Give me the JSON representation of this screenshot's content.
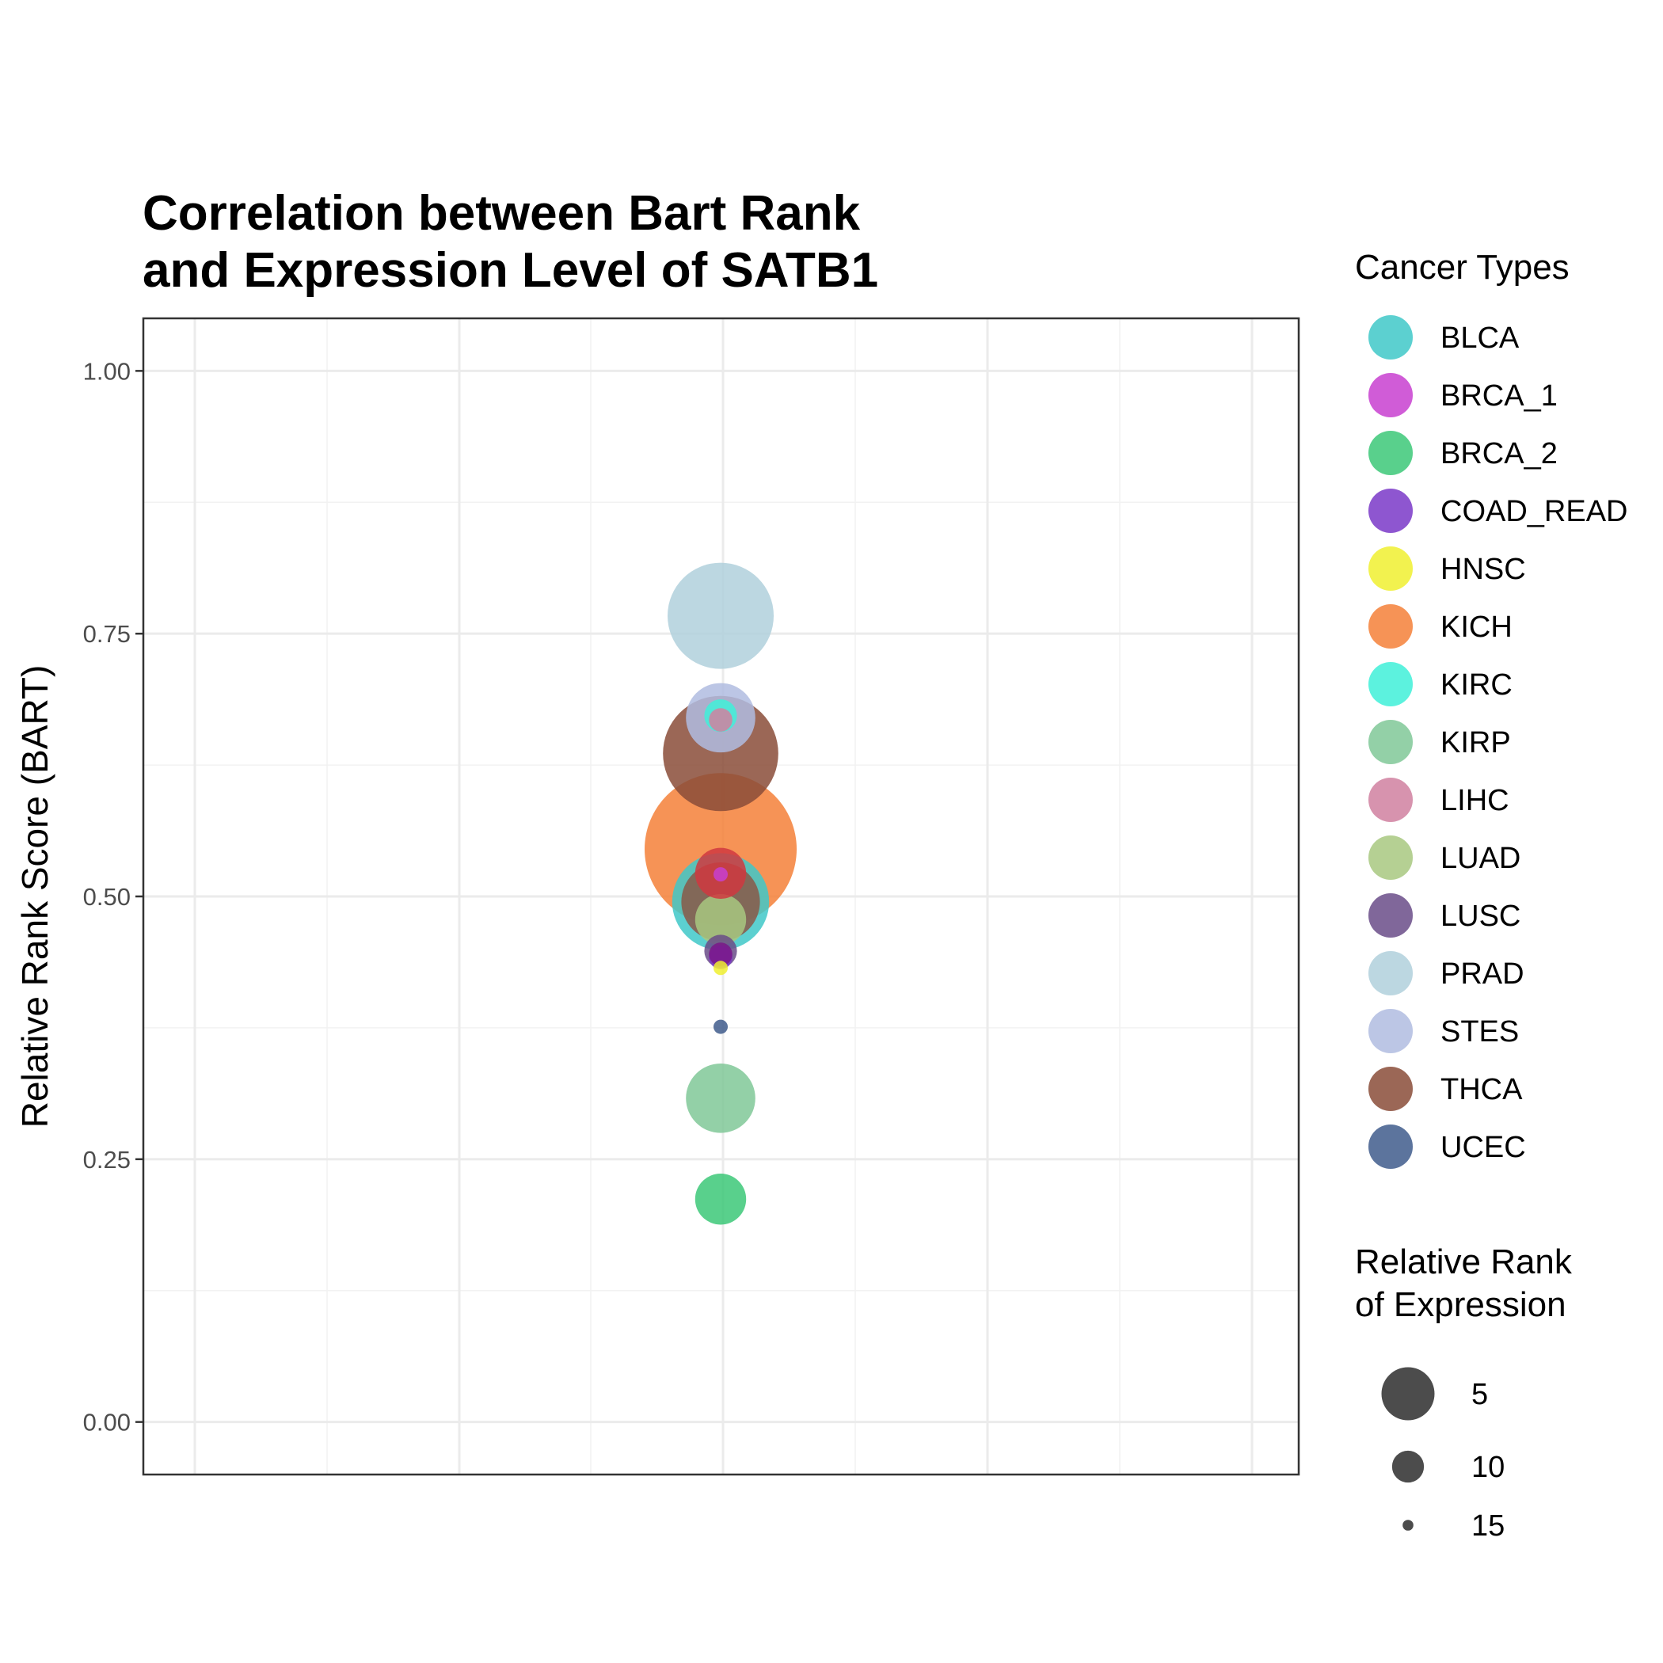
{
  "chart_data": {
    "type": "scatter",
    "title_lines": [
      "Correlation between Bart Rank",
      "and Expression Level of SATB1"
    ],
    "xlabel": "",
    "ylabel": "Relative Rank Score (BART)",
    "ylim": [
      -0.05,
      1.05
    ],
    "y_ticks": [
      0.0,
      0.25,
      0.5,
      0.75,
      1.0
    ],
    "y_tick_labels": [
      "0.00",
      "0.25",
      "0.50",
      "0.75",
      "1.00"
    ],
    "grid": true,
    "legend_position": "right",
    "color_legend_title": "Cancer Types",
    "size_legend_title_lines": [
      "Relative Rank",
      "of Expression"
    ],
    "size_legend": [
      {
        "label": "5",
        "value": 5
      },
      {
        "label": "10",
        "value": 10
      },
      {
        "label": "15",
        "value": 15
      }
    ],
    "series": [
      {
        "name": "BLCA",
        "color": "#40C8C8",
        "y": 0.495,
        "expression_rank": 7
      },
      {
        "name": "BRCA_1",
        "color": "#C840D0",
        "y": 0.521,
        "expression_rank": 16
      },
      {
        "name": "BRCA_2",
        "color": "#3CC878",
        "y": 0.212,
        "expression_rank": 12
      },
      {
        "name": "COAD_READ",
        "color": "#7A38C8",
        "y": 0.442,
        "expression_rank": 15
      },
      {
        "name": "HNSC",
        "color": "#F0F030",
        "y": 0.432,
        "expression_rank": 16
      },
      {
        "name": "KICH",
        "color": "#F48038",
        "y": 0.545,
        "expression_rank": 1
      },
      {
        "name": "KIRC",
        "color": "#40F0D8",
        "y": 0.672,
        "expression_rank": 14
      },
      {
        "name": "KIRP",
        "color": "#80C898",
        "y": 0.308,
        "expression_rank": 10
      },
      {
        "name": "LIHC",
        "color": "#D080A0",
        "y": 0.668,
        "expression_rank": 15
      },
      {
        "name": "LUAD",
        "color": "#A8C880",
        "y": 0.478,
        "expression_rank": 12
      },
      {
        "name": "LUSC",
        "color": "#6A4C88",
        "y": 0.448,
        "expression_rank": 14
      },
      {
        "name": "PRAD",
        "color": "#B0D0DC",
        "y": 0.767,
        "expression_rank": 6
      },
      {
        "name": "STES",
        "color": "#B0BCE0",
        "y": 0.67,
        "expression_rank": 10
      },
      {
        "name": "THCA",
        "color": "#8A4C38",
        "y": 0.636,
        "expression_rank": 5
      },
      {
        "name": "UCEC",
        "color": "#405C8C",
        "y": 0.376,
        "expression_rank": 16
      }
    ],
    "extra_points": [
      {
        "color": "#D03840",
        "y": 0.522,
        "expression_rank": 12
      },
      {
        "color": "#8A5848",
        "y": 0.495,
        "expression_rank": 9
      },
      {
        "color": "#7A1888",
        "y": 0.445,
        "expression_rank": 15
      }
    ]
  }
}
